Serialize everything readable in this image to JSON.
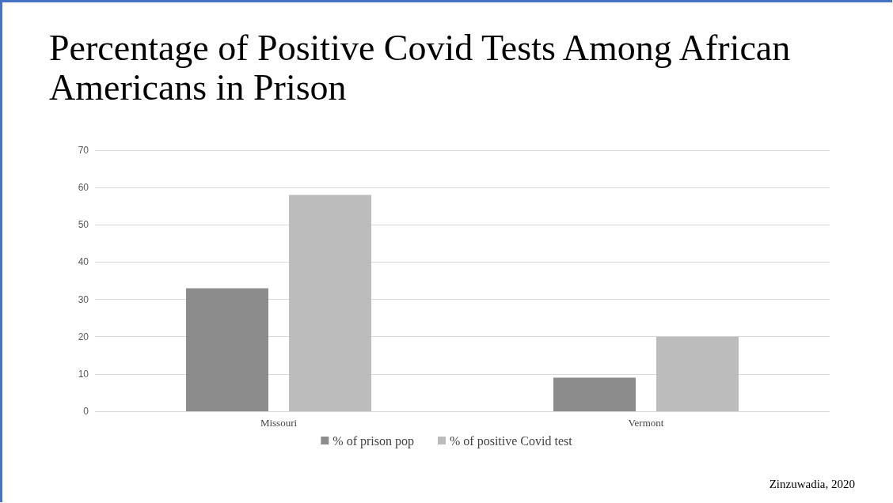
{
  "chart_data": {
    "type": "bar",
    "title": "Percentage of Positive Covid Tests Among African Americans in Prison",
    "categories": [
      "Missouri",
      "Vermont"
    ],
    "series": [
      {
        "name": "% of prison pop",
        "color": "#8c8c8c",
        "values": [
          33,
          9
        ]
      },
      {
        "name": "% of positive Covid test",
        "color": "#bcbcbc",
        "values": [
          58,
          20
        ]
      }
    ],
    "ylim": [
      0,
      70
    ],
    "yticks": [
      0,
      10,
      20,
      30,
      40,
      50,
      60,
      70
    ],
    "grid": "y",
    "legend": "bottom",
    "annotations": [
      "Zinzuwadia, 2020"
    ]
  }
}
